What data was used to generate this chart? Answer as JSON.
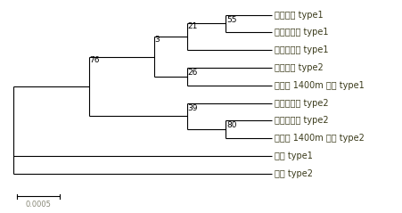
{
  "taxa": [
    "한택곰취 type1",
    "한대미곰취 type1",
    "다도해곰취 type1",
    "한택곰취 type2",
    "한라산 1400m 곰취 type1",
    "한대미곰취 type2",
    "다도해곰취 type2",
    "한라산 1400m 곰취 type2",
    "곰취 type1",
    "곰취 type2"
  ],
  "scale_label": "0.0005",
  "bg_color": "#ffffff",
  "line_color": "#000000",
  "text_color": "#3a3a1a",
  "fontsize": 7.0,
  "bootstrap_fontsize": 6.5
}
